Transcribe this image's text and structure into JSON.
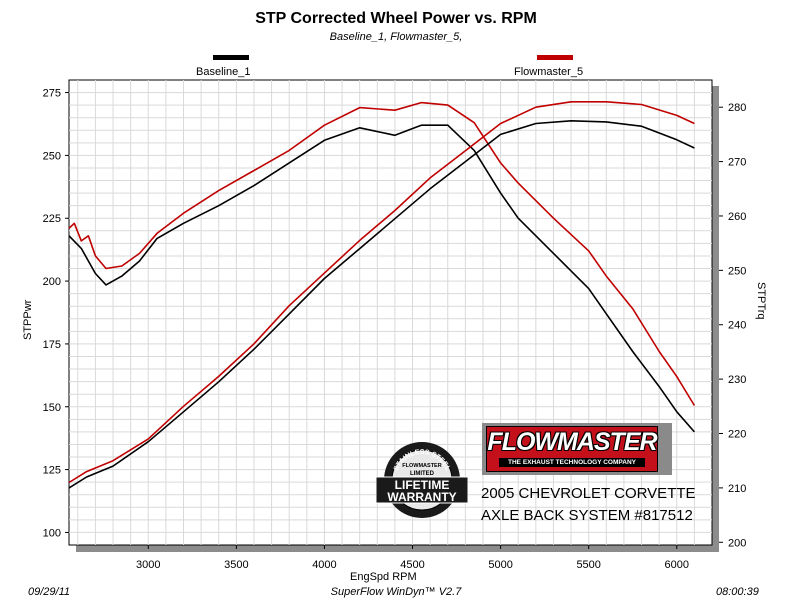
{
  "chart_data": {
    "type": "line",
    "title": "STP Corrected Wheel Power vs. RPM",
    "subtitle": "Baseline_1, Flowmaster_5,",
    "xlabel": "EngSpd  RPM",
    "ylabel_left": "STPPwr",
    "ylabel_right": "STPTrq",
    "x_ticks": [
      "3000",
      "3500",
      "4000",
      "4500",
      "5000",
      "5500",
      "6000"
    ],
    "y_left_ticks": [
      "100",
      "125",
      "150",
      "175",
      "200",
      "225",
      "250",
      "275"
    ],
    "y_right_ticks": [
      "200",
      "210",
      "220",
      "230",
      "240",
      "250",
      "260",
      "270",
      "280"
    ],
    "xlim": [
      2550,
      6200
    ],
    "ylim_left": [
      95,
      280
    ],
    "ylim_right": [
      199.5,
      285
    ],
    "grid": true,
    "legend": [
      "Baseline_1",
      "Flowmaster_5"
    ],
    "series": [
      {
        "name": "Baseline_1",
        "color": "#000000",
        "axis": "left",
        "metric": "power",
        "x": [
          2550,
          2620,
          2700,
          2760,
          2850,
          2950,
          3050,
          3200,
          3400,
          3600,
          3800,
          4000,
          4200,
          4400,
          4550,
          4700,
          4850,
          5000,
          5100,
          5300,
          5500,
          5600,
          5750,
          5900,
          6000,
          6100
        ],
        "values": [
          218,
          213,
          203,
          198.5,
          202,
          208,
          217,
          223,
          230,
          238,
          247,
          256,
          261,
          258,
          262,
          262,
          252,
          235,
          225,
          211,
          197,
          187,
          172,
          158,
          148,
          140
        ]
      },
      {
        "name": "Flowmaster_5",
        "color": "#c00000",
        "axis": "left",
        "metric": "power",
        "x": [
          2550,
          2580,
          2620,
          2660,
          2700,
          2760,
          2850,
          2950,
          3050,
          3200,
          3400,
          3600,
          3800,
          4000,
          4200,
          4400,
          4550,
          4700,
          4850,
          5000,
          5100,
          5300,
          5500,
          5600,
          5750,
          5900,
          6000,
          6100
        ],
        "values": [
          221,
          223,
          216,
          218,
          210,
          205,
          206,
          211,
          219,
          227,
          236,
          244,
          252,
          262,
          269,
          268,
          271,
          270,
          263,
          247,
          239,
          225,
          212,
          202,
          189,
          172,
          162,
          150.5
        ]
      },
      {
        "name": "Baseline_1",
        "color": "#000000",
        "axis": "right",
        "metric": "torque",
        "x": [
          2550,
          2650,
          2800,
          3000,
          3200,
          3400,
          3600,
          3800,
          4000,
          4200,
          4400,
          4600,
          4800,
          5000,
          5200,
          5400,
          5600,
          5800,
          6000,
          6100
        ],
        "values": [
          210,
          212,
          214,
          218.5,
          224,
          229.5,
          235.5,
          242,
          248.5,
          254,
          259.5,
          265,
          270,
          275,
          277,
          277.5,
          277.3,
          276.5,
          274,
          272.5
        ]
      },
      {
        "name": "Flowmaster_5",
        "color": "#c00000",
        "axis": "right",
        "metric": "torque",
        "x": [
          2550,
          2650,
          2800,
          3000,
          3200,
          3400,
          3600,
          3800,
          4000,
          4200,
          4400,
          4600,
          4800,
          5000,
          5200,
          5400,
          5600,
          5800,
          6000,
          6100
        ],
        "values": [
          211,
          213,
          215,
          219,
          225,
          230.5,
          236.5,
          243.5,
          249.5,
          255.5,
          261,
          267,
          272,
          277,
          280,
          281,
          281,
          280.5,
          278.5,
          277
        ]
      }
    ],
    "annotations": {
      "logo_text": "FLOWMASTER",
      "logo_tagline": "THE EXHAUST TECHNOLOGY COMPANY",
      "badge_lines": [
        "STAINLESS STEEL",
        "FLOWMASTER",
        "LIMITED",
        "LIFETIME",
        "WARRANTY"
      ]
    }
  },
  "vehicle": {
    "line1": "2005 CHEVROLET CORVETTE",
    "line2": "AXLE BACK SYSTEM #817512"
  },
  "footer": {
    "date": "09/29/11",
    "software": "SuperFlow WinDyn™ V2.7",
    "time": "08:00:39"
  }
}
